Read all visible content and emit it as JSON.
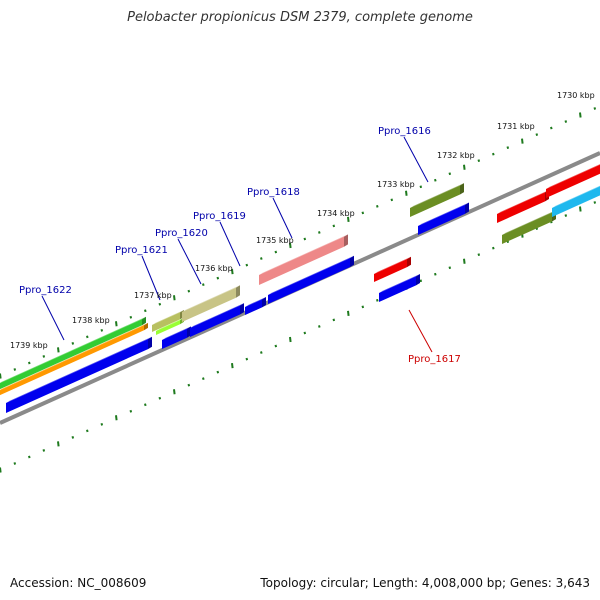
{
  "title": "Pelobacter propionicus DSM 2379, complete genome",
  "footer": {
    "accession": "Accession: NC_008609",
    "summary": "Topology: circular; Length: 4,008,000 bp; Genes: 3,643"
  },
  "colors": {
    "backbone": "#888888",
    "tick": "#1f7a1f",
    "forward_blue": "#0000ee",
    "label_blue": "#0000aa",
    "label_red": "#cc0000"
  },
  "kbp_labels": [
    "1730 kbp",
    "1731 kbp",
    "1732 kbp",
    "1733 kbp",
    "1734 kbp",
    "1735 kbp",
    "1736 kbp",
    "1737 kbp",
    "1738 kbp",
    "1739 kbp"
  ],
  "gene_labels": [
    {
      "text": "Ppro_1616",
      "color": "blue"
    },
    {
      "text": "Ppro_1617",
      "color": "red"
    },
    {
      "text": "Ppro_1618",
      "color": "blue"
    },
    {
      "text": "Ppro_1619",
      "color": "blue"
    },
    {
      "text": "Ppro_1620",
      "color": "blue"
    },
    {
      "text": "Ppro_1621",
      "color": "blue"
    },
    {
      "text": "Ppro_1622",
      "color": "blue"
    }
  ]
}
